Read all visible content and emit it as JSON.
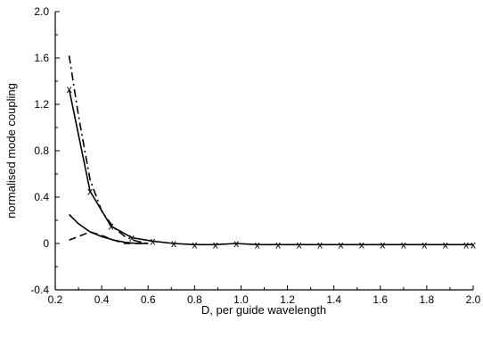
{
  "chart_data": {
    "type": "line",
    "xlabel": "D, per guide wavelength",
    "ylabel": "normalised mode coupling",
    "xlim": [
      0.2,
      2.0
    ],
    "ylim": [
      -0.4,
      2.0
    ],
    "x_ticks": [
      "0.2",
      "0.4",
      "0.6",
      "0.8",
      "1.0",
      "1.2",
      "1.4",
      "1.6",
      "1.8",
      "2.0"
    ],
    "y_ticks": [
      "-0.4",
      "0",
      "0.4",
      "0.8",
      "1.2",
      "1.6",
      "2.0"
    ],
    "grid": false,
    "marker_glyph": "x",
    "series": [
      {
        "style": "solid",
        "marker": "x",
        "points": [
          [
            0.26,
            1.33
          ],
          [
            0.35,
            0.45
          ],
          [
            0.44,
            0.15
          ],
          [
            0.53,
            0.05
          ],
          [
            0.62,
            0.02
          ],
          [
            0.71,
            0.0
          ],
          [
            0.8,
            -0.01
          ],
          [
            0.89,
            -0.01
          ],
          [
            0.98,
            0.0
          ],
          [
            1.07,
            -0.01
          ],
          [
            1.16,
            -0.01
          ],
          [
            1.25,
            -0.01
          ],
          [
            1.34,
            -0.01
          ],
          [
            1.43,
            -0.01
          ],
          [
            1.52,
            -0.01
          ],
          [
            1.61,
            -0.01
          ],
          [
            1.7,
            -0.01
          ],
          [
            1.79,
            -0.01
          ],
          [
            1.88,
            -0.01
          ],
          [
            1.97,
            -0.01
          ],
          [
            2.0,
            -0.01
          ]
        ]
      },
      {
        "style": "dashdot",
        "marker": "none",
        "points": [
          [
            0.26,
            1.62
          ],
          [
            0.3,
            1.1
          ],
          [
            0.35,
            0.55
          ],
          [
            0.4,
            0.28
          ],
          [
            0.45,
            0.14
          ],
          [
            0.5,
            0.06
          ],
          [
            0.55,
            0.02
          ],
          [
            0.6,
            0.0
          ]
        ]
      },
      {
        "style": "solid",
        "marker": "none",
        "points": [
          [
            0.26,
            0.25
          ],
          [
            0.3,
            0.17
          ],
          [
            0.35,
            0.1
          ],
          [
            0.4,
            0.06
          ],
          [
            0.45,
            0.03
          ],
          [
            0.5,
            0.01
          ],
          [
            0.55,
            0.0
          ],
          [
            0.6,
            0.0
          ]
        ]
      },
      {
        "style": "dashed",
        "marker": "none",
        "points": [
          [
            0.26,
            0.03
          ],
          [
            0.3,
            0.06
          ],
          [
            0.35,
            0.1
          ],
          [
            0.4,
            0.07
          ],
          [
            0.45,
            0.03
          ],
          [
            0.5,
            0.0
          ],
          [
            0.55,
            0.0
          ],
          [
            0.6,
            0.0
          ]
        ]
      }
    ]
  }
}
